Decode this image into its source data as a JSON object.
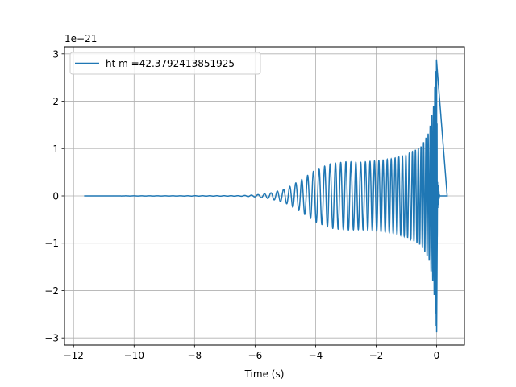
{
  "chart_data": {
    "type": "line",
    "xlabel": "Time (s)",
    "ylabel": "",
    "y_offset_text": "1e−21",
    "xlim": [
      -12.3,
      0.92
    ],
    "ylim": [
      -3.15,
      3.15
    ],
    "xticks": [
      -12,
      -10,
      -8,
      -6,
      -4,
      -2,
      0
    ],
    "xtick_labels": [
      "−12",
      "−10",
      "−8",
      "−6",
      "−4",
      "−2",
      "0"
    ],
    "yticks": [
      -3,
      -2,
      -1,
      0,
      1,
      2,
      3
    ],
    "ytick_labels": [
      "−3",
      "−2",
      "−1",
      "0",
      "1",
      "2",
      "3"
    ],
    "grid": true,
    "legend_position": "upper-left",
    "series": [
      {
        "name": "ht m =42.3792413851925",
        "color": "#1f77b4",
        "x_start": -11.65,
        "x_end": 0.35,
        "merger_time": 0.0,
        "peak_amplitude": 2.88,
        "envelope": [
          {
            "t": -11.65,
            "a": 0.0
          },
          {
            "t": -6.5,
            "a": 0.005
          },
          {
            "t": -6.0,
            "a": 0.02
          },
          {
            "t": -5.5,
            "a": 0.06
          },
          {
            "t": -5.0,
            "a": 0.15
          },
          {
            "t": -4.5,
            "a": 0.33
          },
          {
            "t": -4.0,
            "a": 0.55
          },
          {
            "t": -3.5,
            "a": 0.68
          },
          {
            "t": -3.0,
            "a": 0.72
          },
          {
            "t": -2.5,
            "a": 0.71
          },
          {
            "t": -2.0,
            "a": 0.74
          },
          {
            "t": -1.5,
            "a": 0.78
          },
          {
            "t": -1.0,
            "a": 0.86
          },
          {
            "t": -0.5,
            "a": 1.05
          },
          {
            "t": -0.25,
            "a": 1.35
          },
          {
            "t": -0.1,
            "a": 1.9
          },
          {
            "t": -0.03,
            "a": 2.6
          },
          {
            "t": 0.0,
            "a": 2.88
          },
          {
            "t": 0.03,
            "a": 0.3
          },
          {
            "t": 0.1,
            "a": 0.0
          },
          {
            "t": 0.35,
            "a": 0.0
          }
        ]
      }
    ]
  }
}
